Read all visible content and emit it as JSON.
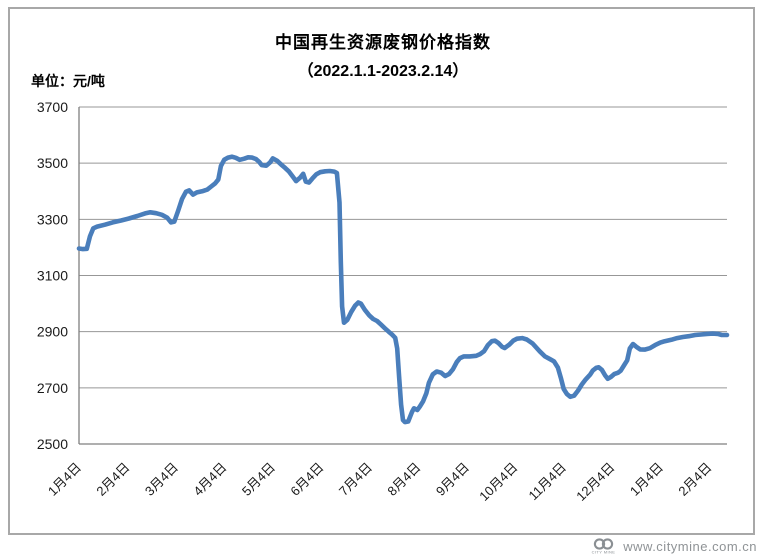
{
  "figure": {
    "title": "中国再生资源废钢价格指数",
    "subtitle": "（2022.1.1-2023.2.14）",
    "unit_label": "单位：元/吨",
    "watermark_url": "www.citymine.com.cn"
  },
  "colors": {
    "line": "#4a7ebb",
    "grid": "#979797",
    "axis": "#7f7f7f",
    "frame": "#a8a8a8",
    "text": "#1a1a1a",
    "watermark": "#8f9396"
  },
  "chart_data": {
    "type": "line",
    "title": "中国再生资源废钢价格指数",
    "subtitle": "（2022.1.1-2023.2.14）",
    "ylabel": "单位：元/吨",
    "x_range": [
      "2022.1.1",
      "2023.2.14"
    ],
    "xtick_labels": [
      "1月4日",
      "2月4日",
      "3月4日",
      "4月4日",
      "5月4日",
      "6月4日",
      "7月4日",
      "8月4日",
      "9月4日",
      "10月4日",
      "11月4日",
      "12月4日",
      "1月4日",
      "2月4日"
    ],
    "ylim": [
      2500,
      3700
    ],
    "yticks": [
      2500,
      2700,
      2900,
      3100,
      3300,
      3500,
      3700
    ],
    "grid": true,
    "legend": false,
    "series": [
      {
        "color": "#4a7ebb",
        "x_encoding": "fraction of x-axis (2022.1.1 → 2023.2.14)",
        "points": [
          [
            0.0,
            3196
          ],
          [
            0.006,
            3194
          ],
          [
            0.012,
            3195
          ],
          [
            0.017,
            3240
          ],
          [
            0.022,
            3268
          ],
          [
            0.028,
            3274
          ],
          [
            0.04,
            3281
          ],
          [
            0.052,
            3289
          ],
          [
            0.065,
            3296
          ],
          [
            0.077,
            3303
          ],
          [
            0.09,
            3312
          ],
          [
            0.102,
            3321
          ],
          [
            0.11,
            3325
          ],
          [
            0.119,
            3322
          ],
          [
            0.128,
            3316
          ],
          [
            0.136,
            3306
          ],
          [
            0.142,
            3289
          ],
          [
            0.147,
            3292
          ],
          [
            0.153,
            3330
          ],
          [
            0.159,
            3372
          ],
          [
            0.165,
            3398
          ],
          [
            0.17,
            3403
          ],
          [
            0.176,
            3388
          ],
          [
            0.182,
            3396
          ],
          [
            0.19,
            3400
          ],
          [
            0.198,
            3406
          ],
          [
            0.204,
            3417
          ],
          [
            0.21,
            3428
          ],
          [
            0.215,
            3442
          ],
          [
            0.219,
            3490
          ],
          [
            0.224,
            3512
          ],
          [
            0.23,
            3520
          ],
          [
            0.236,
            3523
          ],
          [
            0.242,
            3519
          ],
          [
            0.248,
            3512
          ],
          [
            0.255,
            3516
          ],
          [
            0.261,
            3521
          ],
          [
            0.267,
            3520
          ],
          [
            0.273,
            3515
          ],
          [
            0.278,
            3505
          ],
          [
            0.282,
            3493
          ],
          [
            0.289,
            3491
          ],
          [
            0.295,
            3503
          ],
          [
            0.299,
            3517
          ],
          [
            0.306,
            3508
          ],
          [
            0.312,
            3495
          ],
          [
            0.318,
            3483
          ],
          [
            0.324,
            3470
          ],
          [
            0.33,
            3452
          ],
          [
            0.335,
            3436
          ],
          [
            0.341,
            3448
          ],
          [
            0.346,
            3462
          ],
          [
            0.35,
            3434
          ],
          [
            0.355,
            3431
          ],
          [
            0.36,
            3445
          ],
          [
            0.366,
            3460
          ],
          [
            0.372,
            3468
          ],
          [
            0.38,
            3471
          ],
          [
            0.387,
            3472
          ],
          [
            0.394,
            3470
          ],
          [
            0.398,
            3465
          ],
          [
            0.402,
            3360
          ],
          [
            0.404,
            3150
          ],
          [
            0.406,
            2990
          ],
          [
            0.409,
            2932
          ],
          [
            0.414,
            2942
          ],
          [
            0.42,
            2970
          ],
          [
            0.426,
            2992
          ],
          [
            0.431,
            3004
          ],
          [
            0.435,
            3000
          ],
          [
            0.441,
            2978
          ],
          [
            0.448,
            2958
          ],
          [
            0.454,
            2945
          ],
          [
            0.46,
            2938
          ],
          [
            0.466,
            2925
          ],
          [
            0.472,
            2912
          ],
          [
            0.478,
            2900
          ],
          [
            0.483,
            2890
          ],
          [
            0.488,
            2878
          ],
          [
            0.491,
            2840
          ],
          [
            0.494,
            2740
          ],
          [
            0.497,
            2640
          ],
          [
            0.5,
            2585
          ],
          [
            0.503,
            2578
          ],
          [
            0.508,
            2580
          ],
          [
            0.514,
            2615
          ],
          [
            0.517,
            2627
          ],
          [
            0.522,
            2621
          ],
          [
            0.526,
            2633
          ],
          [
            0.531,
            2652
          ],
          [
            0.536,
            2680
          ],
          [
            0.54,
            2718
          ],
          [
            0.546,
            2748
          ],
          [
            0.552,
            2758
          ],
          [
            0.559,
            2754
          ],
          [
            0.565,
            2742
          ],
          [
            0.571,
            2749
          ],
          [
            0.577,
            2766
          ],
          [
            0.583,
            2792
          ],
          [
            0.588,
            2806
          ],
          [
            0.594,
            2812
          ],
          [
            0.603,
            2812
          ],
          [
            0.613,
            2814
          ],
          [
            0.619,
            2820
          ],
          [
            0.625,
            2830
          ],
          [
            0.631,
            2852
          ],
          [
            0.637,
            2866
          ],
          [
            0.642,
            2868
          ],
          [
            0.647,
            2860
          ],
          [
            0.653,
            2846
          ],
          [
            0.657,
            2842
          ],
          [
            0.664,
            2854
          ],
          [
            0.67,
            2868
          ],
          [
            0.676,
            2875
          ],
          [
            0.684,
            2877
          ],
          [
            0.691,
            2872
          ],
          [
            0.7,
            2858
          ],
          [
            0.711,
            2830
          ],
          [
            0.719,
            2812
          ],
          [
            0.727,
            2802
          ],
          [
            0.733,
            2794
          ],
          [
            0.739,
            2772
          ],
          [
            0.744,
            2732
          ],
          [
            0.748,
            2696
          ],
          [
            0.753,
            2678
          ],
          [
            0.758,
            2668
          ],
          [
            0.764,
            2672
          ],
          [
            0.77,
            2690
          ],
          [
            0.776,
            2712
          ],
          [
            0.782,
            2730
          ],
          [
            0.789,
            2748
          ],
          [
            0.793,
            2762
          ],
          [
            0.798,
            2771
          ],
          [
            0.802,
            2773
          ],
          [
            0.807,
            2764
          ],
          [
            0.812,
            2744
          ],
          [
            0.816,
            2732
          ],
          [
            0.821,
            2739
          ],
          [
            0.826,
            2749
          ],
          [
            0.832,
            2754
          ],
          [
            0.836,
            2761
          ],
          [
            0.841,
            2780
          ],
          [
            0.846,
            2798
          ],
          [
            0.85,
            2840
          ],
          [
            0.855,
            2856
          ],
          [
            0.86,
            2846
          ],
          [
            0.866,
            2837
          ],
          [
            0.873,
            2836
          ],
          [
            0.881,
            2841
          ],
          [
            0.889,
            2852
          ],
          [
            0.897,
            2861
          ],
          [
            0.904,
            2866
          ],
          [
            0.914,
            2871
          ],
          [
            0.923,
            2877
          ],
          [
            0.932,
            2881
          ],
          [
            0.941,
            2884
          ],
          [
            0.951,
            2888
          ],
          [
            0.96,
            2890
          ],
          [
            0.969,
            2892
          ],
          [
            0.978,
            2893
          ],
          [
            0.986,
            2892
          ],
          [
            0.992,
            2888
          ],
          [
            1.0,
            2888
          ]
        ]
      }
    ]
  }
}
